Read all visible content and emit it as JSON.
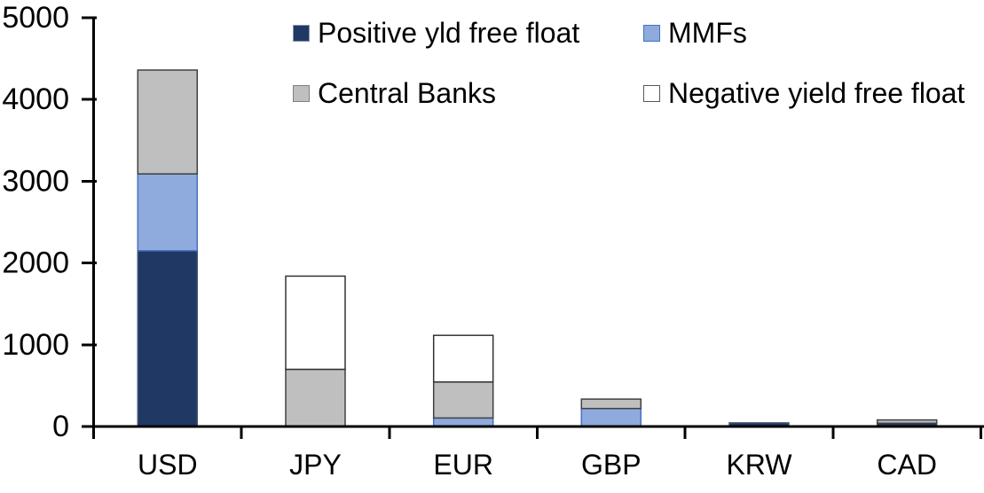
{
  "chart_data": {
    "type": "bar",
    "subtype": "stacked",
    "title": "",
    "categories": [
      "USD",
      "JPY",
      "EUR",
      "GBP",
      "KRW",
      "CAD"
    ],
    "series": [
      {
        "name": "Positive yld free float",
        "color": "#1f3864",
        "border": "#44546a",
        "values": [
          2150,
          0,
          0,
          0,
          45,
          40
        ]
      },
      {
        "name": "MMFs",
        "color": "#8faadc",
        "border": "#4472c4",
        "values": [
          940,
          0,
          105,
          220,
          0,
          0
        ]
      },
      {
        "name": "Central Banks",
        "color": "#bfbfbf",
        "border": "#404040",
        "values": [
          1270,
          700,
          440,
          115,
          0,
          40
        ]
      },
      {
        "name": "Negative yield free float",
        "color": "#ffffff",
        "border": "#333333",
        "values": [
          0,
          1140,
          570,
          0,
          0,
          0
        ]
      }
    ],
    "totals": {
      "USD": 4360,
      "JPY": 1840,
      "EUR": 1115,
      "GBP": 335,
      "KRW": 45,
      "CAD": 80
    },
    "ylim": [
      0,
      5000
    ],
    "yticks": [
      0,
      1000,
      2000,
      3000,
      4000,
      5000
    ],
    "grid": false,
    "legend_position": "top-center-two-rows",
    "axis_color": "#000000",
    "text_color": "#000000"
  }
}
